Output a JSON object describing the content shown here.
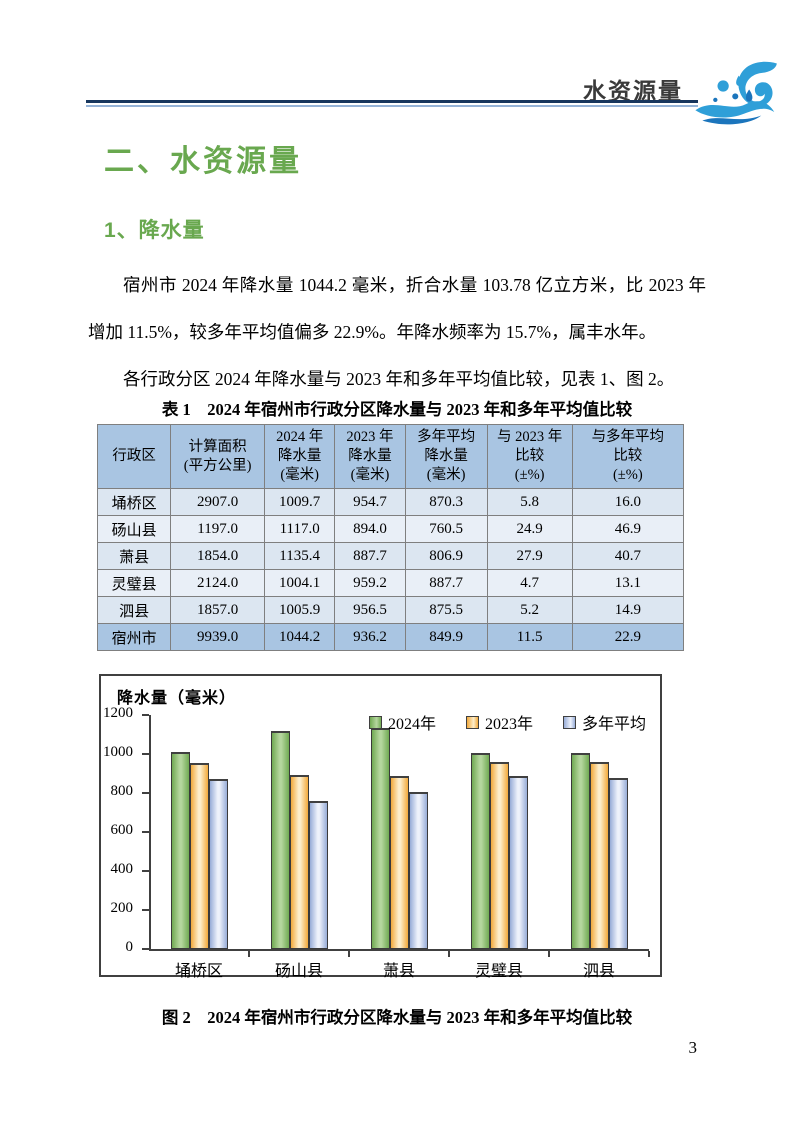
{
  "header": {
    "title": "水资源量"
  },
  "section": {
    "title": "二、水资源量",
    "subtitle": "1、降水量"
  },
  "paragraphs": [
    "宿州市 2024 年降水量 1044.2 毫米，折合水量 103.78 亿立方米，比 2023 年增加 11.5%，较多年平均值偏多 22.9%。年降水频率为 15.7%，属丰水年。",
    "各行政分区 2024 年降水量与 2023 年和多年平均值比较，见表 1、图 2。"
  ],
  "table": {
    "caption": "表 1　2024 年宿州市行政分区降水量与 2023 年和多年平均值比较",
    "columns": [
      "行政区",
      "计算面积\n(平方公里)",
      "2024 年\n降水量\n(毫米)",
      "2023 年\n降水量\n(毫米)",
      "多年平均\n降水量\n(毫米)",
      "与 2023 年\n比较\n(±%)",
      "与多年平均\n比较\n(±%)"
    ],
    "col_widths": [
      "12.5%",
      "16%",
      "12%",
      "12%",
      "14%",
      "14.5%",
      "19%"
    ],
    "rows": [
      [
        "埇桥区",
        "2907.0",
        "1009.7",
        "954.7",
        "870.3",
        "5.8",
        "16.0"
      ],
      [
        "砀山县",
        "1197.0",
        "1117.0",
        "894.0",
        "760.5",
        "24.9",
        "46.9"
      ],
      [
        "萧县",
        "1854.0",
        "1135.4",
        "887.7",
        "806.9",
        "27.9",
        "40.7"
      ],
      [
        "灵璧县",
        "2124.0",
        "1004.1",
        "959.2",
        "887.7",
        "4.7",
        "13.1"
      ],
      [
        "泗县",
        "1857.0",
        "1005.9",
        "956.5",
        "875.5",
        "5.2",
        "14.9"
      ]
    ],
    "total_row": [
      "宿州市",
      "9939.0",
      "1044.2",
      "936.2",
      "849.9",
      "11.5",
      "22.9"
    ]
  },
  "chart_data": {
    "type": "bar",
    "title": "",
    "ylabel": "降水量（毫米）",
    "xlabel": "",
    "ylim": [
      0,
      1200
    ],
    "ytick_step": 200,
    "yticks": [
      0,
      200,
      400,
      600,
      800,
      1000,
      1200
    ],
    "grid": false,
    "legend_position": "top-right-inside",
    "categories": [
      "埇桥区",
      "砀山县",
      "萧县",
      "灵璧县",
      "泗县"
    ],
    "series": [
      {
        "name": "2024年",
        "values": [
          1009.7,
          1117.0,
          1135.4,
          1004.1,
          1005.9
        ],
        "color_edge": "#71aa53",
        "color_center": "#b5d69e"
      },
      {
        "name": "2023年",
        "values": [
          954.7,
          894.0,
          887.7,
          959.2,
          956.5
        ],
        "color_edge": "#f2a93b",
        "color_center": "#fdeecb"
      },
      {
        "name": "多年平均",
        "values": [
          870.3,
          760.5,
          806.9,
          887.7,
          875.5
        ],
        "color_edge": "#97acd7",
        "color_center": "#eef2fb"
      }
    ]
  },
  "figure_caption": "图 2　2024 年宿州市行政分区降水量与 2023 年和多年平均值比较",
  "page": {
    "number": "3"
  },
  "colors": {
    "heading_green": "#69a84f",
    "rule_dark": "#17365d",
    "rule_light": "#95b3d7",
    "table_header_bg": "#a9c5e2",
    "row_odd_bg": "#dce6f1",
    "row_even_bg": "#e9eff7",
    "logo_blue": "#2f9fd8",
    "logo_blue_dark": "#1b75bc"
  }
}
